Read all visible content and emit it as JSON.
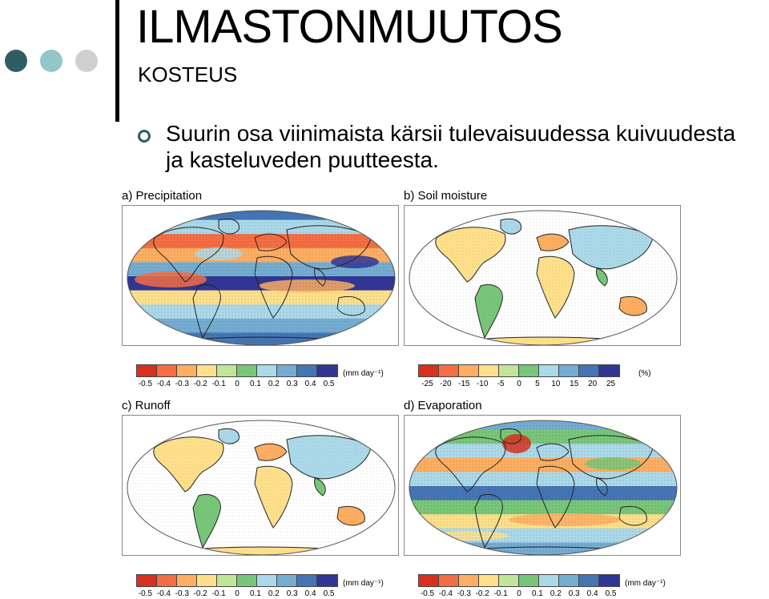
{
  "slide": {
    "title": "ILMASTONMUUTOS",
    "subtitle": "KOSTEUS",
    "bullet_line1": "Suurin osa viinimaista kärsii tulevaisuudessa kuivuudesta",
    "bullet_line2": "ja kasteluveden puutteesta.",
    "dot_colors": [
      "#2e5e63",
      "#93c6c8",
      "#cfcfcf"
    ]
  },
  "figure": {
    "panels": [
      {
        "label": "a) Precipitation",
        "unit": "(mm day⁻¹)",
        "ticks": [
          "-0.5",
          "-0.4",
          "-0.3",
          "-0.2",
          "-0.1",
          "0",
          "0.1",
          "0.2",
          "0.3",
          "0.4",
          "0.5"
        ],
        "land_only": false
      },
      {
        "label": "b) Soil moisture",
        "unit": "(%)",
        "ticks": [
          "-25",
          "-20",
          "-15",
          "-10",
          "-5",
          "0",
          "5",
          "10",
          "15",
          "20",
          "25"
        ],
        "land_only": true
      },
      {
        "label": "c) Runoff",
        "unit": "(mm day⁻¹)",
        "ticks": [
          "-0.5",
          "-0.4",
          "-0.3",
          "-0.2",
          "-0.1",
          "0",
          "0.1",
          "0.2",
          "0.3",
          "0.4",
          "0.5"
        ],
        "land_only": true
      },
      {
        "label": "d) Evaporation",
        "unit": "(mm day⁻¹)",
        "ticks": [
          "-0.5",
          "-0.4",
          "-0.3",
          "-0.2",
          "-0.1",
          "0",
          "0.1",
          "0.2",
          "0.3",
          "0.4",
          "0.5"
        ],
        "land_only": false
      }
    ],
    "colorbar_colors": [
      "#d7301f",
      "#f46d43",
      "#fdae61",
      "#fee08b",
      "#c2e699",
      "#78c679",
      "#abd9e9",
      "#74add1",
      "#4575b4",
      "#313695"
    ]
  }
}
